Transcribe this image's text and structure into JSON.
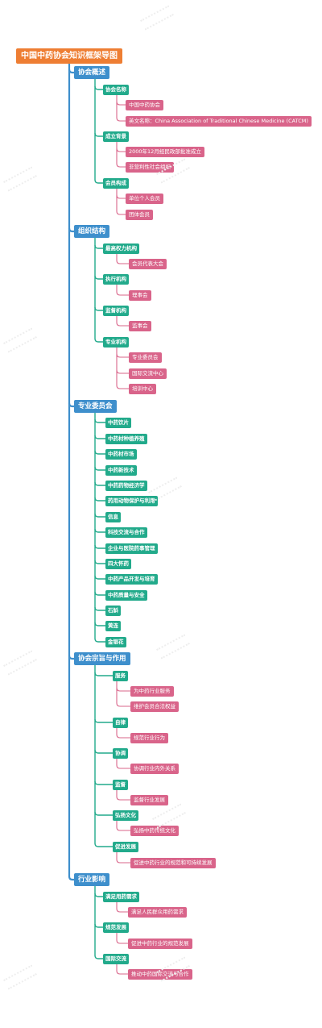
{
  "root": {
    "label": "中国中药协会知识框架导图",
    "children": [
      {
        "label": "协会概述",
        "children": [
          {
            "label": "协会名称",
            "children": [
              {
                "label": "中国中药协会"
              },
              {
                "label": "英文名称：China Association of Traditional Chinese Medicine (CATCM)"
              }
            ]
          },
          {
            "label": "成立背景",
            "children": [
              {
                "label": "2000年12月经民政部批准成立"
              },
              {
                "label": "非营利性社会组织"
              }
            ]
          },
          {
            "label": "会员构成",
            "children": [
              {
                "label": "单位个人会员"
              },
              {
                "label": "团体会员"
              }
            ]
          }
        ]
      },
      {
        "label": "组织结构",
        "children": [
          {
            "label": "最高权力机构",
            "children": [
              {
                "label": "会员代表大会"
              }
            ]
          },
          {
            "label": "执行机构",
            "children": [
              {
                "label": "理事会"
              }
            ]
          },
          {
            "label": "监督机构",
            "children": [
              {
                "label": "监事会"
              }
            ]
          },
          {
            "label": "专业机构",
            "children": [
              {
                "label": "专业委员会"
              },
              {
                "label": "国际交流中心"
              },
              {
                "label": "培训中心"
              }
            ]
          }
        ]
      },
      {
        "label": "专业委员会",
        "children": [
          {
            "label": "中药饮片"
          },
          {
            "label": "中药材种植养殖"
          },
          {
            "label": "中药材市场"
          },
          {
            "label": "中药新技术"
          },
          {
            "label": "中药药物经济学"
          },
          {
            "label": "药用动物保护与利用"
          },
          {
            "label": "信息"
          },
          {
            "label": "科技交流与合作"
          },
          {
            "label": "企业与医院药事管理"
          },
          {
            "label": "四大怀药"
          },
          {
            "label": "中药产品开发与培育"
          },
          {
            "label": "中药质量与安全"
          },
          {
            "label": "石斛"
          },
          {
            "label": "黄连"
          },
          {
            "label": "金银花"
          }
        ]
      },
      {
        "label": "协会宗旨与作用",
        "children": [
          {
            "label": "服务",
            "children": [
              {
                "label": "为中药行业服务"
              },
              {
                "label": "维护会员合法权益"
              }
            ]
          },
          {
            "label": "自律",
            "children": [
              {
                "label": "规范行业行为"
              }
            ]
          },
          {
            "label": "协调",
            "children": [
              {
                "label": "协调行业内外关系"
              }
            ]
          },
          {
            "label": "监督",
            "children": [
              {
                "label": "监督行业发展"
              }
            ]
          },
          {
            "label": "弘扬文化",
            "children": [
              {
                "label": "弘扬中药传统文化"
              }
            ]
          },
          {
            "label": "促进发展",
            "children": [
              {
                "label": "促进中药行业的规范和可持续发展"
              }
            ]
          }
        ]
      },
      {
        "label": "行业影响",
        "children": [
          {
            "label": "满足用药需求",
            "children": [
              {
                "label": "满足人民群众用药需求"
              }
            ]
          },
          {
            "label": "规范发展",
            "children": [
              {
                "label": "促进中药行业的规范发展"
              }
            ]
          },
          {
            "label": "国际交流",
            "children": [
              {
                "label": "推动中药国际交流与合作"
              }
            ]
          }
        ]
      }
    ]
  },
  "colors": {
    "root": "#ee7e33",
    "level1": "#3e8fcc",
    "level2": "#22aa8b",
    "level3": "#d9648a",
    "connector_root": "#3e8fcc",
    "connector_level1": "#22aa8b",
    "connector_level2": "#d9648a",
    "background": "#ffffff"
  }
}
